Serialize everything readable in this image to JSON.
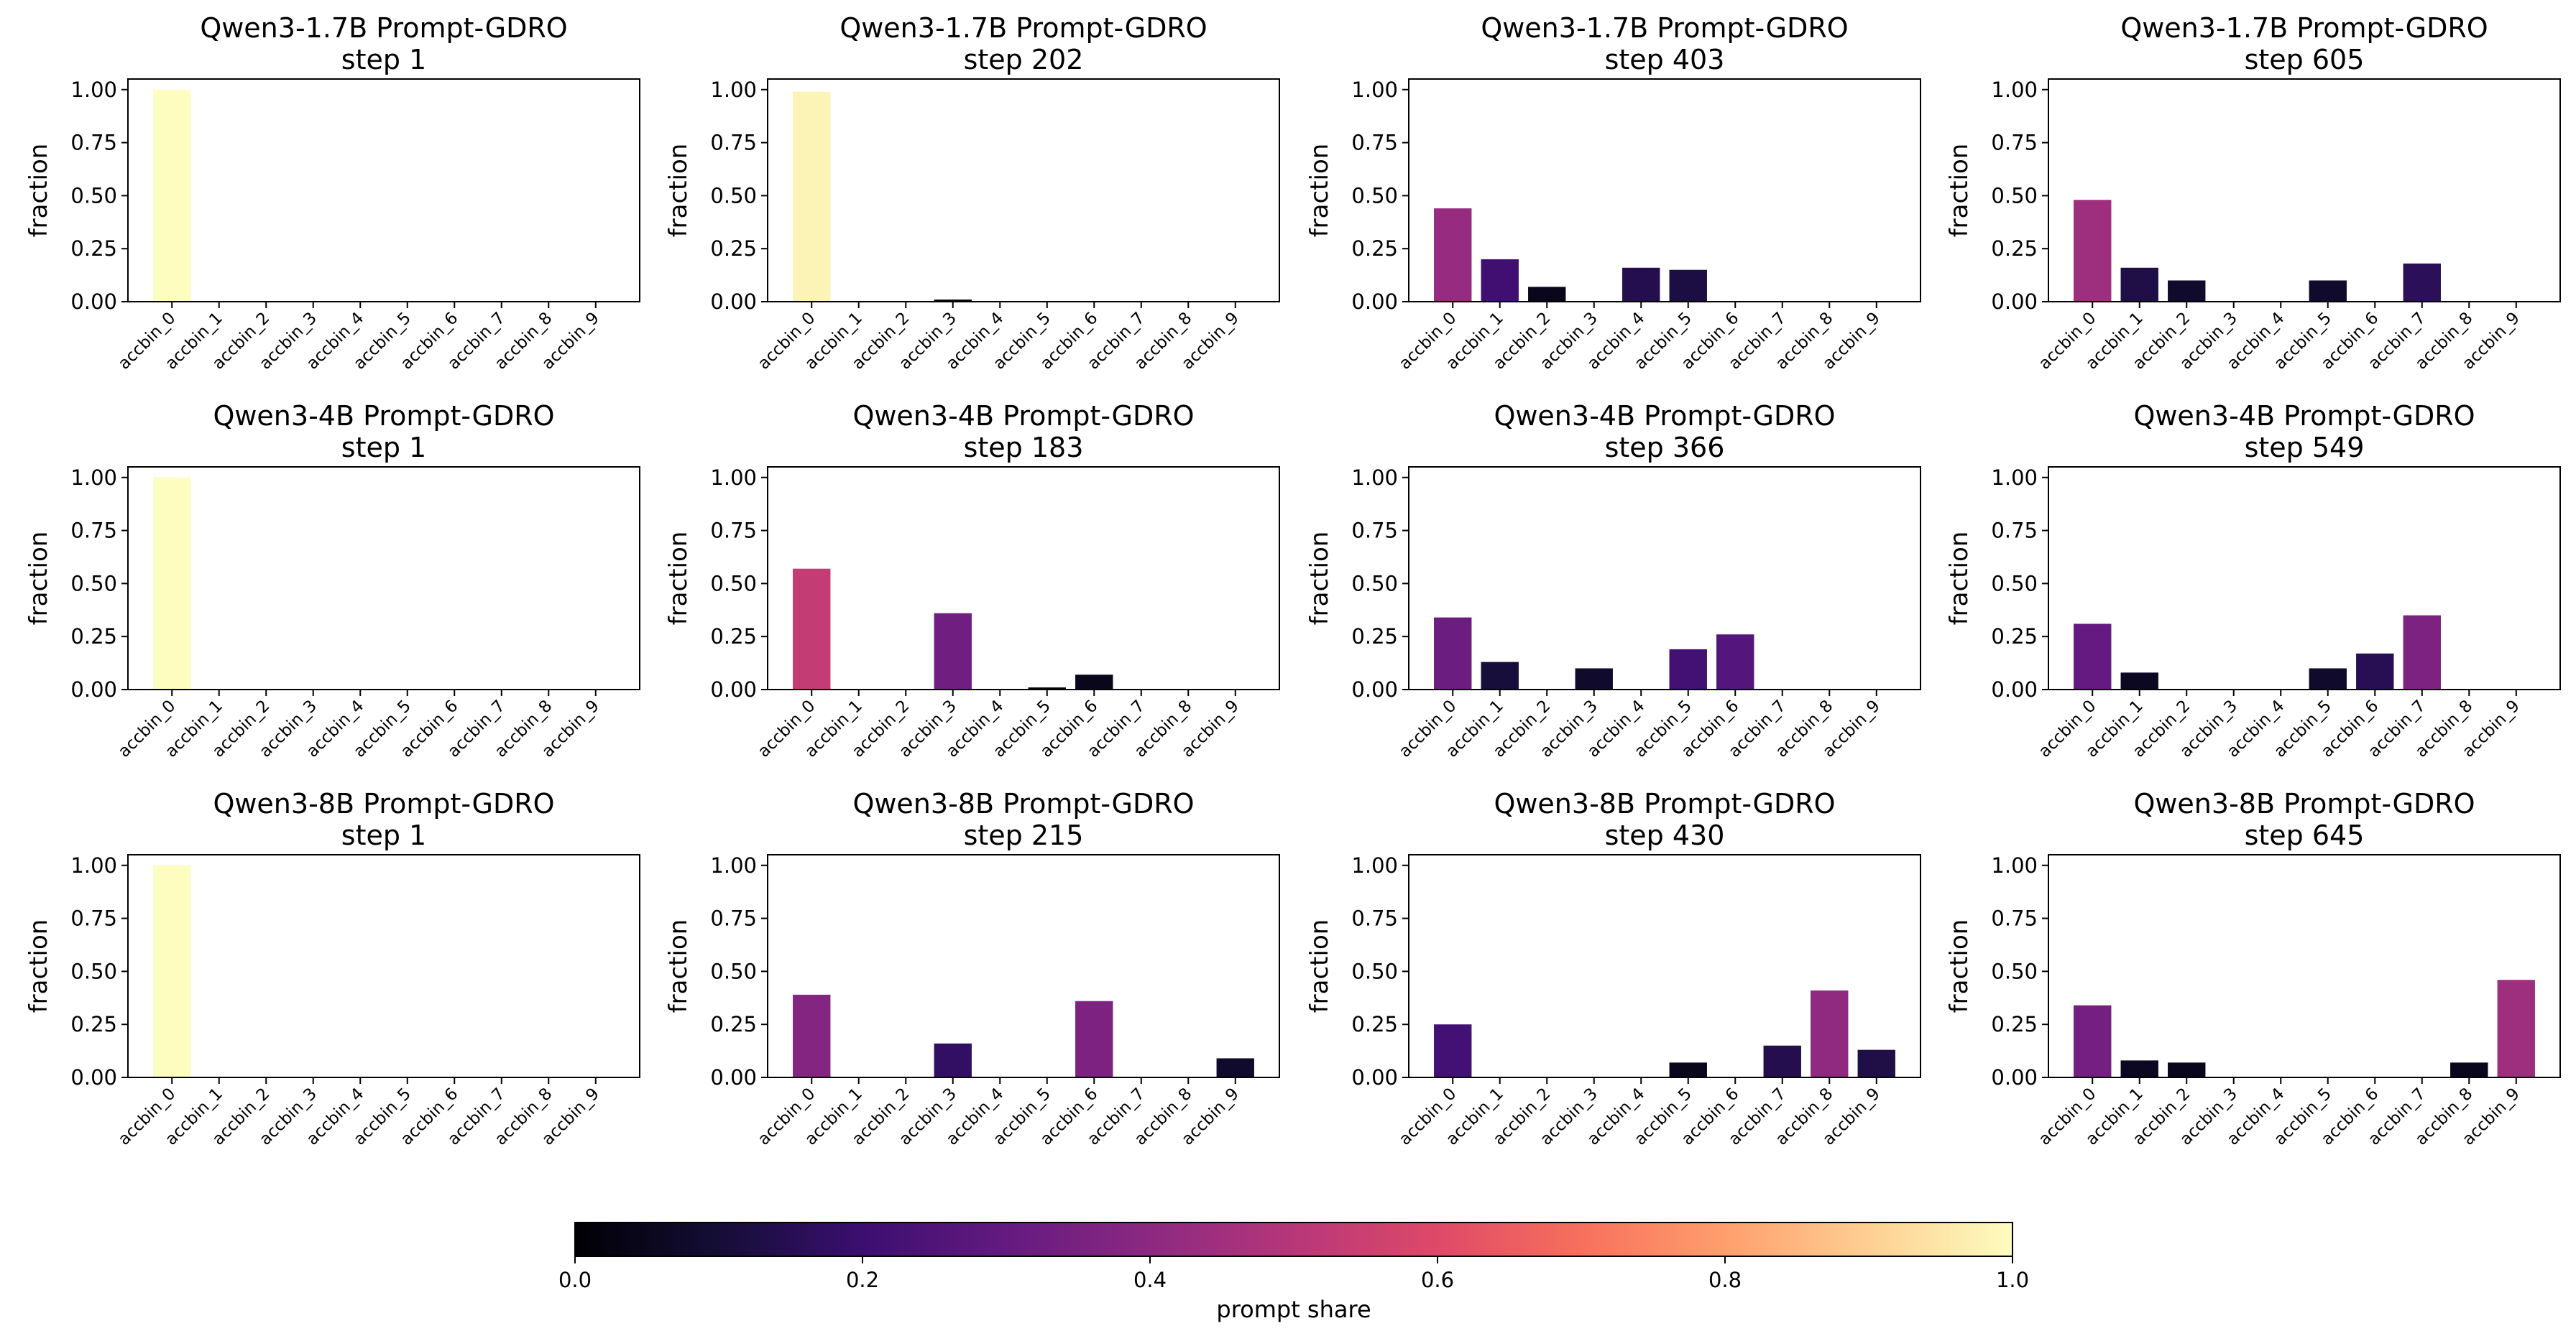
{
  "figure": {
    "colorbar": {
      "label": "prompt share",
      "ticks": [
        "0.0",
        "0.2",
        "0.4",
        "0.6",
        "0.8",
        "1.0"
      ],
      "range": [
        0,
        1
      ],
      "colormap": "magma"
    }
  },
  "chart_data": [
    {
      "type": "bar",
      "title": [
        "Qwen3-1.7B Prompt-GDRO",
        "step 1"
      ],
      "ylabel": "fraction",
      "ylim": [
        0,
        1.05
      ],
      "yticks": [
        "0.00",
        "0.25",
        "0.50",
        "0.75",
        "1.00"
      ],
      "categories": [
        "accbin_0",
        "accbin_1",
        "accbin_2",
        "accbin_3",
        "accbin_4",
        "accbin_5",
        "accbin_6",
        "accbin_7",
        "accbin_8",
        "accbin_9"
      ],
      "values": [
        1.0,
        0,
        0,
        0,
        0,
        0,
        0,
        0,
        0,
        0
      ],
      "colors_prompt_share": [
        1.0,
        0,
        0,
        0,
        0,
        0,
        0,
        0,
        0,
        0
      ]
    },
    {
      "type": "bar",
      "title": [
        "Qwen3-1.7B Prompt-GDRO",
        "step 202"
      ],
      "ylabel": "fraction",
      "ylim": [
        0,
        1.05
      ],
      "yticks": [
        "0.00",
        "0.25",
        "0.50",
        "0.75",
        "1.00"
      ],
      "categories": [
        "accbin_0",
        "accbin_1",
        "accbin_2",
        "accbin_3",
        "accbin_4",
        "accbin_5",
        "accbin_6",
        "accbin_7",
        "accbin_8",
        "accbin_9"
      ],
      "values": [
        0.99,
        0,
        0,
        0.01,
        0,
        0,
        0,
        0,
        0,
        0
      ],
      "colors_prompt_share": [
        0.98,
        0,
        0,
        0.02,
        0,
        0,
        0,
        0,
        0,
        0
      ]
    },
    {
      "type": "bar",
      "title": [
        "Qwen3-1.7B Prompt-GDRO",
        "step 403"
      ],
      "ylabel": "fraction",
      "ylim": [
        0,
        1.05
      ],
      "yticks": [
        "0.00",
        "0.25",
        "0.50",
        "0.75",
        "1.00"
      ],
      "categories": [
        "accbin_0",
        "accbin_1",
        "accbin_2",
        "accbin_3",
        "accbin_4",
        "accbin_5",
        "accbin_6",
        "accbin_7",
        "accbin_8",
        "accbin_9"
      ],
      "values": [
        0.44,
        0.2,
        0.07,
        0,
        0.16,
        0.15,
        0,
        0,
        0,
        0
      ],
      "colors_prompt_share": [
        0.42,
        0.21,
        0.05,
        0,
        0.14,
        0.12,
        0,
        0,
        0,
        0
      ]
    },
    {
      "type": "bar",
      "title": [
        "Qwen3-1.7B Prompt-GDRO",
        "step 605"
      ],
      "ylabel": "fraction",
      "ylim": [
        0,
        1.05
      ],
      "yticks": [
        "0.00",
        "0.25",
        "0.50",
        "0.75",
        "1.00"
      ],
      "categories": [
        "accbin_0",
        "accbin_1",
        "accbin_2",
        "accbin_3",
        "accbin_4",
        "accbin_5",
        "accbin_6",
        "accbin_7",
        "accbin_8",
        "accbin_9"
      ],
      "values": [
        0.48,
        0.16,
        0.1,
        0,
        0,
        0.1,
        0,
        0.18,
        0,
        0
      ],
      "colors_prompt_share": [
        0.44,
        0.13,
        0.08,
        0,
        0,
        0.08,
        0,
        0.16,
        0,
        0
      ]
    },
    {
      "type": "bar",
      "title": [
        "Qwen3-4B Prompt-GDRO",
        "step 1"
      ],
      "ylabel": "fraction",
      "ylim": [
        0,
        1.05
      ],
      "yticks": [
        "0.00",
        "0.25",
        "0.50",
        "0.75",
        "1.00"
      ],
      "categories": [
        "accbin_0",
        "accbin_1",
        "accbin_2",
        "accbin_3",
        "accbin_4",
        "accbin_5",
        "accbin_6",
        "accbin_7",
        "accbin_8",
        "accbin_9"
      ],
      "values": [
        1.0,
        0,
        0,
        0,
        0,
        0,
        0,
        0,
        0,
        0
      ],
      "colors_prompt_share": [
        1.0,
        0,
        0,
        0,
        0,
        0,
        0,
        0,
        0,
        0
      ]
    },
    {
      "type": "bar",
      "title": [
        "Qwen3-4B Prompt-GDRO",
        "step 183"
      ],
      "ylabel": "fraction",
      "ylim": [
        0,
        1.05
      ],
      "yticks": [
        "0.00",
        "0.25",
        "0.50",
        "0.75",
        "1.00"
      ],
      "categories": [
        "accbin_0",
        "accbin_1",
        "accbin_2",
        "accbin_3",
        "accbin_4",
        "accbin_5",
        "accbin_6",
        "accbin_7",
        "accbin_8",
        "accbin_9"
      ],
      "values": [
        0.57,
        0,
        0,
        0.36,
        0,
        0.01,
        0.07,
        0,
        0,
        0
      ],
      "colors_prompt_share": [
        0.53,
        0,
        0,
        0.33,
        0,
        0.01,
        0.05,
        0,
        0,
        0
      ]
    },
    {
      "type": "bar",
      "title": [
        "Qwen3-4B Prompt-GDRO",
        "step 366"
      ],
      "ylabel": "fraction",
      "ylim": [
        0,
        1.05
      ],
      "yticks": [
        "0.00",
        "0.25",
        "0.50",
        "0.75",
        "1.00"
      ],
      "categories": [
        "accbin_0",
        "accbin_1",
        "accbin_2",
        "accbin_3",
        "accbin_4",
        "accbin_5",
        "accbin_6",
        "accbin_7",
        "accbin_8",
        "accbin_9"
      ],
      "values": [
        0.34,
        0.13,
        0,
        0.1,
        0,
        0.19,
        0.26,
        0,
        0,
        0
      ],
      "colors_prompt_share": [
        0.32,
        0.11,
        0,
        0.08,
        0,
        0.22,
        0.26,
        0,
        0,
        0
      ]
    },
    {
      "type": "bar",
      "title": [
        "Qwen3-4B Prompt-GDRO",
        "step 549"
      ],
      "ylabel": "fraction",
      "ylim": [
        0,
        1.05
      ],
      "yticks": [
        "0.00",
        "0.25",
        "0.50",
        "0.75",
        "1.00"
      ],
      "categories": [
        "accbin_0",
        "accbin_1",
        "accbin_2",
        "accbin_3",
        "accbin_4",
        "accbin_5",
        "accbin_6",
        "accbin_7",
        "accbin_8",
        "accbin_9"
      ],
      "values": [
        0.31,
        0.08,
        0,
        0,
        0,
        0.1,
        0.17,
        0.35,
        0,
        0
      ],
      "colors_prompt_share": [
        0.3,
        0.06,
        0,
        0,
        0,
        0.08,
        0.15,
        0.36,
        0,
        0
      ]
    },
    {
      "type": "bar",
      "title": [
        "Qwen3-8B Prompt-GDRO",
        "step 1"
      ],
      "ylabel": "fraction",
      "ylim": [
        0,
        1.05
      ],
      "yticks": [
        "0.00",
        "0.25",
        "0.50",
        "0.75",
        "1.00"
      ],
      "categories": [
        "accbin_0",
        "accbin_1",
        "accbin_2",
        "accbin_3",
        "accbin_4",
        "accbin_5",
        "accbin_6",
        "accbin_7",
        "accbin_8",
        "accbin_9"
      ],
      "values": [
        1.0,
        0,
        0,
        0,
        0,
        0,
        0,
        0,
        0,
        0
      ],
      "colors_prompt_share": [
        1.0,
        0,
        0,
        0,
        0,
        0,
        0,
        0,
        0,
        0
      ]
    },
    {
      "type": "bar",
      "title": [
        "Qwen3-8B Prompt-GDRO",
        "step 215"
      ],
      "ylabel": "fraction",
      "ylim": [
        0,
        1.05
      ],
      "yticks": [
        "0.00",
        "0.25",
        "0.50",
        "0.75",
        "1.00"
      ],
      "categories": [
        "accbin_0",
        "accbin_1",
        "accbin_2",
        "accbin_3",
        "accbin_4",
        "accbin_5",
        "accbin_6",
        "accbin_7",
        "accbin_8",
        "accbin_9"
      ],
      "values": [
        0.39,
        0,
        0,
        0.16,
        0,
        0,
        0.36,
        0,
        0,
        0.09
      ],
      "colors_prompt_share": [
        0.38,
        0,
        0,
        0.18,
        0,
        0,
        0.36,
        0,
        0,
        0.08
      ]
    },
    {
      "type": "bar",
      "title": [
        "Qwen3-8B Prompt-GDRO",
        "step 430"
      ],
      "ylabel": "fraction",
      "ylim": [
        0,
        1.05
      ],
      "yticks": [
        "0.00",
        "0.25",
        "0.50",
        "0.75",
        "1.00"
      ],
      "categories": [
        "accbin_0",
        "accbin_1",
        "accbin_2",
        "accbin_3",
        "accbin_4",
        "accbin_5",
        "accbin_6",
        "accbin_7",
        "accbin_8",
        "accbin_9"
      ],
      "values": [
        0.25,
        0,
        0,
        0,
        0,
        0.07,
        0,
        0.15,
        0.41,
        0.13
      ],
      "colors_prompt_share": [
        0.22,
        0,
        0,
        0,
        0,
        0.05,
        0,
        0.14,
        0.41,
        0.13
      ]
    },
    {
      "type": "bar",
      "title": [
        "Qwen3-8B Prompt-GDRO",
        "step 645"
      ],
      "ylabel": "fraction",
      "ylim": [
        0,
        1.05
      ],
      "yticks": [
        "0.00",
        "0.25",
        "0.50",
        "0.75",
        "1.00"
      ],
      "categories": [
        "accbin_0",
        "accbin_1",
        "accbin_2",
        "accbin_3",
        "accbin_4",
        "accbin_5",
        "accbin_6",
        "accbin_7",
        "accbin_8",
        "accbin_9"
      ],
      "values": [
        0.34,
        0.08,
        0.07,
        0,
        0,
        0,
        0,
        0,
        0.07,
        0.46
      ],
      "colors_prompt_share": [
        0.34,
        0.06,
        0.05,
        0,
        0,
        0,
        0,
        0,
        0.05,
        0.44
      ]
    }
  ]
}
